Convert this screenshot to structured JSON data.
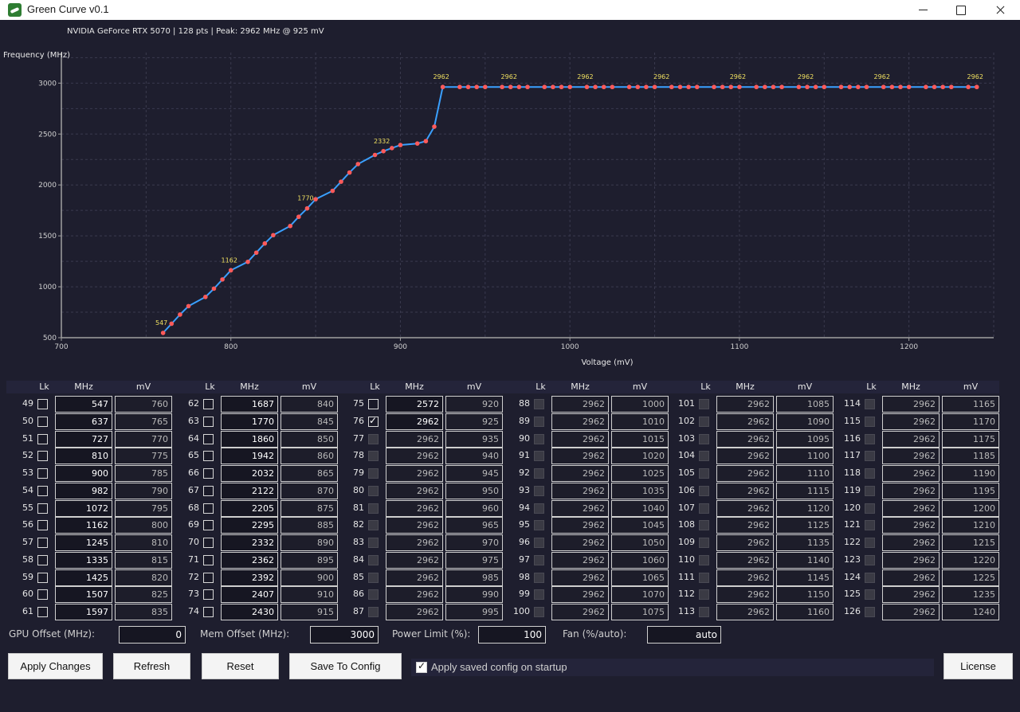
{
  "window": {
    "title": "Green Curve v0.1"
  },
  "info": "NVIDIA GeForce RTX 5070  |  128 pts  |  Peak: 2962 MHz @ 925 mV",
  "chart_data": {
    "type": "line",
    "xlabel": "Voltage (mV)",
    "ylabel": "Frequency (MHz)",
    "xlim": [
      700,
      1250
    ],
    "ylim": [
      500,
      3300
    ],
    "xticks": [
      700,
      800,
      900,
      1000,
      1100,
      1200
    ],
    "yticks": [
      500,
      1000,
      1500,
      2000,
      2500,
      3000
    ],
    "grid": true,
    "line_color": "#3aa0ff",
    "point_color": "#ff5a5a",
    "label_color": "#f0e060",
    "points": [
      [
        760,
        547
      ],
      [
        765,
        637
      ],
      [
        770,
        727
      ],
      [
        775,
        810
      ],
      [
        785,
        900
      ],
      [
        790,
        982
      ],
      [
        795,
        1072
      ],
      [
        800,
        1162
      ],
      [
        810,
        1245
      ],
      [
        815,
        1335
      ],
      [
        820,
        1425
      ],
      [
        825,
        1507
      ],
      [
        835,
        1597
      ],
      [
        840,
        1687
      ],
      [
        845,
        1770
      ],
      [
        850,
        1860
      ],
      [
        860,
        1942
      ],
      [
        865,
        2032
      ],
      [
        870,
        2122
      ],
      [
        875,
        2205
      ],
      [
        885,
        2295
      ],
      [
        890,
        2332
      ],
      [
        895,
        2362
      ],
      [
        900,
        2392
      ],
      [
        910,
        2407
      ],
      [
        915,
        2430
      ],
      [
        920,
        2572
      ],
      [
        925,
        2962
      ],
      [
        935,
        2962
      ],
      [
        940,
        2962
      ],
      [
        945,
        2962
      ],
      [
        950,
        2962
      ],
      [
        960,
        2962
      ],
      [
        965,
        2962
      ],
      [
        970,
        2962
      ],
      [
        975,
        2962
      ],
      [
        985,
        2962
      ],
      [
        990,
        2962
      ],
      [
        995,
        2962
      ],
      [
        1000,
        2962
      ],
      [
        1010,
        2962
      ],
      [
        1015,
        2962
      ],
      [
        1020,
        2962
      ],
      [
        1025,
        2962
      ],
      [
        1035,
        2962
      ],
      [
        1040,
        2962
      ],
      [
        1045,
        2962
      ],
      [
        1050,
        2962
      ],
      [
        1060,
        2962
      ],
      [
        1065,
        2962
      ],
      [
        1070,
        2962
      ],
      [
        1075,
        2962
      ],
      [
        1085,
        2962
      ],
      [
        1090,
        2962
      ],
      [
        1095,
        2962
      ],
      [
        1100,
        2962
      ],
      [
        1110,
        2962
      ],
      [
        1115,
        2962
      ],
      [
        1120,
        2962
      ],
      [
        1125,
        2962
      ],
      [
        1135,
        2962
      ],
      [
        1140,
        2962
      ],
      [
        1145,
        2962
      ],
      [
        1150,
        2962
      ],
      [
        1160,
        2962
      ],
      [
        1165,
        2962
      ],
      [
        1170,
        2962
      ],
      [
        1175,
        2962
      ],
      [
        1185,
        2962
      ],
      [
        1190,
        2962
      ],
      [
        1195,
        2962
      ],
      [
        1200,
        2962
      ],
      [
        1210,
        2962
      ],
      [
        1215,
        2962
      ],
      [
        1220,
        2962
      ],
      [
        1225,
        2962
      ],
      [
        1235,
        2962
      ],
      [
        1240,
        2962
      ]
    ],
    "labels": [
      [
        760,
        547
      ],
      [
        800,
        1162
      ],
      [
        845,
        1770
      ],
      [
        890,
        2332
      ],
      [
        925,
        2962
      ],
      [
        965,
        2962
      ],
      [
        1010,
        2962
      ],
      [
        1055,
        2962
      ],
      [
        1100,
        2962
      ],
      [
        1140,
        2962
      ],
      [
        1185,
        2962
      ],
      [
        1240,
        2962
      ]
    ]
  },
  "table": {
    "headers": {
      "lock": "Lk",
      "mhz": "MHz",
      "mv": "mV"
    },
    "columns": [
      {
        "rows": [
          {
            "i": "49",
            "mhz": "547",
            "mv": "760"
          },
          {
            "i": "50",
            "mhz": "637",
            "mv": "765"
          },
          {
            "i": "51",
            "mhz": "727",
            "mv": "770"
          },
          {
            "i": "52",
            "mhz": "810",
            "mv": "775"
          },
          {
            "i": "53",
            "mhz": "900",
            "mv": "785"
          },
          {
            "i": "54",
            "mhz": "982",
            "mv": "790"
          },
          {
            "i": "55",
            "mhz": "1072",
            "mv": "795"
          },
          {
            "i": "56",
            "mhz": "1162",
            "mv": "800"
          },
          {
            "i": "57",
            "mhz": "1245",
            "mv": "810"
          },
          {
            "i": "58",
            "mhz": "1335",
            "mv": "815"
          },
          {
            "i": "59",
            "mhz": "1425",
            "mv": "820"
          },
          {
            "i": "60",
            "mhz": "1507",
            "mv": "825"
          },
          {
            "i": "61",
            "mhz": "1597",
            "mv": "835"
          }
        ]
      },
      {
        "rows": [
          {
            "i": "62",
            "mhz": "1687",
            "mv": "840"
          },
          {
            "i": "63",
            "mhz": "1770",
            "mv": "845"
          },
          {
            "i": "64",
            "mhz": "1860",
            "mv": "850"
          },
          {
            "i": "65",
            "mhz": "1942",
            "mv": "860"
          },
          {
            "i": "66",
            "mhz": "2032",
            "mv": "865"
          },
          {
            "i": "67",
            "mhz": "2122",
            "mv": "870"
          },
          {
            "i": "68",
            "mhz": "2205",
            "mv": "875"
          },
          {
            "i": "69",
            "mhz": "2295",
            "mv": "885"
          },
          {
            "i": "70",
            "mhz": "2332",
            "mv": "890"
          },
          {
            "i": "71",
            "mhz": "2362",
            "mv": "895"
          },
          {
            "i": "72",
            "mhz": "2392",
            "mv": "900"
          },
          {
            "i": "73",
            "mhz": "2407",
            "mv": "910"
          },
          {
            "i": "74",
            "mhz": "2430",
            "mv": "915"
          }
        ]
      },
      {
        "rows": [
          {
            "i": "75",
            "mhz": "2572",
            "mv": "920"
          },
          {
            "i": "76",
            "mhz": "2962",
            "mv": "925",
            "checked": true
          },
          {
            "i": "77",
            "mhz": "2962",
            "mv": "935",
            "disabled": true
          },
          {
            "i": "78",
            "mhz": "2962",
            "mv": "940",
            "disabled": true
          },
          {
            "i": "79",
            "mhz": "2962",
            "mv": "945",
            "disabled": true
          },
          {
            "i": "80",
            "mhz": "2962",
            "mv": "950",
            "disabled": true
          },
          {
            "i": "81",
            "mhz": "2962",
            "mv": "960",
            "disabled": true
          },
          {
            "i": "82",
            "mhz": "2962",
            "mv": "965",
            "disabled": true
          },
          {
            "i": "83",
            "mhz": "2962",
            "mv": "970",
            "disabled": true
          },
          {
            "i": "84",
            "mhz": "2962",
            "mv": "975",
            "disabled": true
          },
          {
            "i": "85",
            "mhz": "2962",
            "mv": "985",
            "disabled": true
          },
          {
            "i": "86",
            "mhz": "2962",
            "mv": "990",
            "disabled": true
          },
          {
            "i": "87",
            "mhz": "2962",
            "mv": "995",
            "disabled": true
          }
        ]
      },
      {
        "rows": [
          {
            "i": "88",
            "mhz": "2962",
            "mv": "1000",
            "disabled": true
          },
          {
            "i": "89",
            "mhz": "2962",
            "mv": "1010",
            "disabled": true
          },
          {
            "i": "90",
            "mhz": "2962",
            "mv": "1015",
            "disabled": true
          },
          {
            "i": "91",
            "mhz": "2962",
            "mv": "1020",
            "disabled": true
          },
          {
            "i": "92",
            "mhz": "2962",
            "mv": "1025",
            "disabled": true
          },
          {
            "i": "93",
            "mhz": "2962",
            "mv": "1035",
            "disabled": true
          },
          {
            "i": "94",
            "mhz": "2962",
            "mv": "1040",
            "disabled": true
          },
          {
            "i": "95",
            "mhz": "2962",
            "mv": "1045",
            "disabled": true
          },
          {
            "i": "96",
            "mhz": "2962",
            "mv": "1050",
            "disabled": true
          },
          {
            "i": "97",
            "mhz": "2962",
            "mv": "1060",
            "disabled": true
          },
          {
            "i": "98",
            "mhz": "2962",
            "mv": "1065",
            "disabled": true
          },
          {
            "i": "99",
            "mhz": "2962",
            "mv": "1070",
            "disabled": true
          },
          {
            "i": "100",
            "mhz": "2962",
            "mv": "1075",
            "disabled": true
          }
        ]
      },
      {
        "rows": [
          {
            "i": "101",
            "mhz": "2962",
            "mv": "1085",
            "disabled": true
          },
          {
            "i": "102",
            "mhz": "2962",
            "mv": "1090",
            "disabled": true
          },
          {
            "i": "103",
            "mhz": "2962",
            "mv": "1095",
            "disabled": true
          },
          {
            "i": "104",
            "mhz": "2962",
            "mv": "1100",
            "disabled": true
          },
          {
            "i": "105",
            "mhz": "2962",
            "mv": "1110",
            "disabled": true
          },
          {
            "i": "106",
            "mhz": "2962",
            "mv": "1115",
            "disabled": true
          },
          {
            "i": "107",
            "mhz": "2962",
            "mv": "1120",
            "disabled": true
          },
          {
            "i": "108",
            "mhz": "2962",
            "mv": "1125",
            "disabled": true
          },
          {
            "i": "109",
            "mhz": "2962",
            "mv": "1135",
            "disabled": true
          },
          {
            "i": "110",
            "mhz": "2962",
            "mv": "1140",
            "disabled": true
          },
          {
            "i": "111",
            "mhz": "2962",
            "mv": "1145",
            "disabled": true
          },
          {
            "i": "112",
            "mhz": "2962",
            "mv": "1150",
            "disabled": true
          },
          {
            "i": "113",
            "mhz": "2962",
            "mv": "1160",
            "disabled": true
          }
        ]
      },
      {
        "rows": [
          {
            "i": "114",
            "mhz": "2962",
            "mv": "1165",
            "disabled": true
          },
          {
            "i": "115",
            "mhz": "2962",
            "mv": "1170",
            "disabled": true
          },
          {
            "i": "116",
            "mhz": "2962",
            "mv": "1175",
            "disabled": true
          },
          {
            "i": "117",
            "mhz": "2962",
            "mv": "1185",
            "disabled": true
          },
          {
            "i": "118",
            "mhz": "2962",
            "mv": "1190",
            "disabled": true
          },
          {
            "i": "119",
            "mhz": "2962",
            "mv": "1195",
            "disabled": true
          },
          {
            "i": "120",
            "mhz": "2962",
            "mv": "1200",
            "disabled": true
          },
          {
            "i": "121",
            "mhz": "2962",
            "mv": "1210",
            "disabled": true
          },
          {
            "i": "122",
            "mhz": "2962",
            "mv": "1215",
            "disabled": true
          },
          {
            "i": "123",
            "mhz": "2962",
            "mv": "1220",
            "disabled": true
          },
          {
            "i": "124",
            "mhz": "2962",
            "mv": "1225",
            "disabled": true
          },
          {
            "i": "125",
            "mhz": "2962",
            "mv": "1235",
            "disabled": true
          },
          {
            "i": "126",
            "mhz": "2962",
            "mv": "1240",
            "disabled": true
          }
        ]
      }
    ]
  },
  "offsets": {
    "gpu_label": "GPU Offset (MHz):",
    "gpu_value": "0",
    "mem_label": "Mem Offset (MHz):",
    "mem_value": "3000",
    "power_label": "Power Limit (%):",
    "power_value": "100",
    "fan_label": "Fan (%/auto):",
    "fan_value": "auto"
  },
  "actions": {
    "apply": "Apply Changes",
    "refresh": "Refresh",
    "reset": "Reset",
    "save": "Save To Config",
    "startup_label": "Apply saved config on startup",
    "startup_checked": true,
    "license": "License"
  }
}
